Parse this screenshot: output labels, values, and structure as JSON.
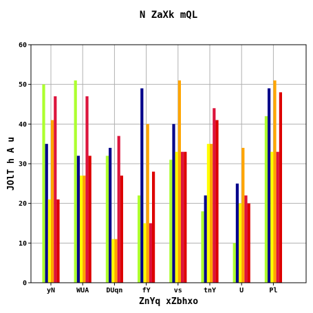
{
  "chart_data": {
    "type": "bar",
    "title": "N ZaXk mQL",
    "xlabel": "ZnYq xZbhxo",
    "ylabel": "JOlT h A  u",
    "categories": [
      "yN",
      "WUA",
      "DUqn",
      "fY",
      "vs",
      "tnY",
      "U",
      "Pl"
    ],
    "ylim": [
      0,
      60
    ],
    "yticks": [
      0,
      10,
      20,
      30,
      40,
      50,
      60
    ],
    "grid": true,
    "legend": "none",
    "series": [
      {
        "color": "#adff2f",
        "values": [
          50,
          51,
          32,
          22,
          31,
          18,
          10,
          42
        ]
      },
      {
        "color": "#00008b",
        "values": [
          35,
          32,
          34,
          49,
          40,
          22,
          25,
          49
        ]
      },
      {
        "color": "#ffff00",
        "values": [
          21,
          27,
          11,
          15,
          33,
          35,
          20,
          33
        ]
      },
      {
        "color": "#ffa500",
        "values": [
          41,
          27,
          11,
          40,
          51,
          35,
          34,
          51
        ]
      },
      {
        "color": "#dc143c",
        "values": [
          47,
          47,
          37,
          15,
          33,
          44,
          22,
          33
        ]
      },
      {
        "color": "#dd0000",
        "values": [
          21,
          32,
          27,
          28,
          33,
          41,
          20,
          48
        ]
      }
    ]
  }
}
